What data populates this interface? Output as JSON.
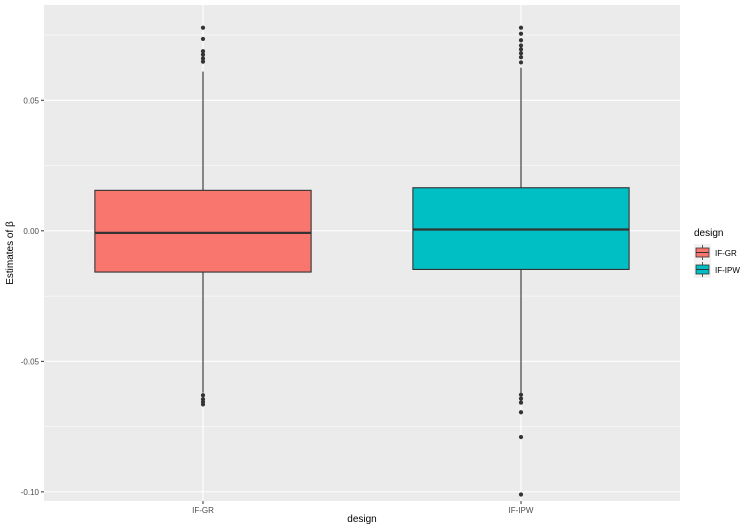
{
  "chart_data": {
    "type": "boxplot",
    "xlabel": "design",
    "ylabel": "Estimates of β",
    "ylim": [
      -0.1035,
      0.0865
    ],
    "y_ticks": [
      -0.1,
      -0.05,
      0.0,
      0.05
    ],
    "y_tick_labels": [
      "-0.10",
      "-0.05",
      "0.00",
      "0.05"
    ],
    "categories": [
      "IF-GR",
      "IF-IPW"
    ],
    "legend": {
      "title": "design",
      "position": "right",
      "entries": [
        "IF-GR",
        "IF-IPW"
      ]
    },
    "grid": true,
    "colors": {
      "panel_bg": "#ebebeb",
      "grid": "#ffffff",
      "IF-GR": "#f8766d",
      "IF-IPW": "#00bfc4",
      "outline": "#333333"
    },
    "boxes": [
      {
        "name": "IF-GR",
        "whisker_low": -0.062,
        "q1": -0.0158,
        "median": -0.0008,
        "q3": 0.0155,
        "whisker_high": 0.061,
        "outliers": [
          0.0778,
          0.0735,
          0.0688,
          0.0675,
          0.066,
          0.0648,
          -0.063,
          -0.0645,
          -0.0655,
          -0.0665
        ]
      },
      {
        "name": "IF-IPW",
        "whisker_low": -0.062,
        "q1": -0.0148,
        "median": 0.0005,
        "q3": 0.0165,
        "whisker_high": 0.0625,
        "outliers": [
          0.0778,
          0.0755,
          0.073,
          0.071,
          0.0695,
          0.068,
          0.0665,
          0.0645,
          -0.0628,
          -0.0643,
          -0.0658,
          -0.0695,
          -0.079,
          -0.101
        ]
      }
    ]
  }
}
